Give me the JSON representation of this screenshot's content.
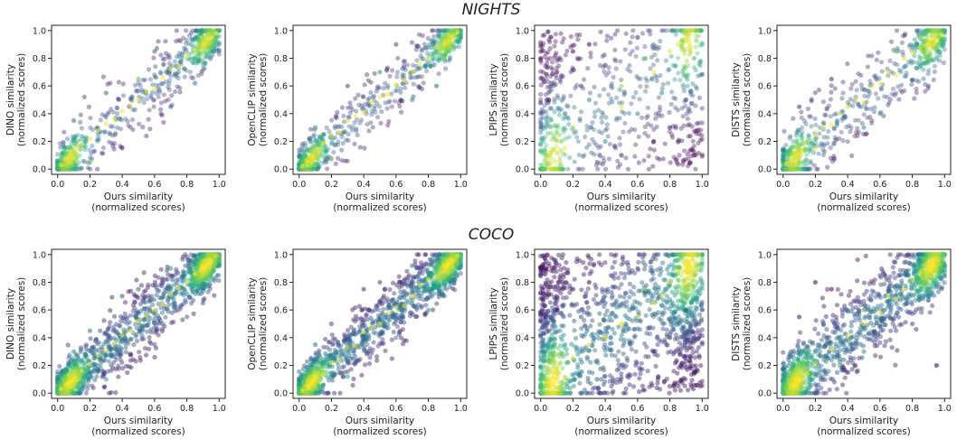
{
  "figure": {
    "rows": [
      {
        "title": "NIGHTS",
        "panels": [
          {
            "xlabel": [
              "Ours similarity",
              "(normalized scores)"
            ],
            "ylabel": [
              "DINO similarity",
              "(normalized scores)"
            ]
          },
          {
            "xlabel": [
              "Ours similarity",
              "(normalized scores)"
            ],
            "ylabel": [
              "OpenCLIP similarity",
              "(normalized scores)"
            ]
          },
          {
            "xlabel": [
              "Ours similarity",
              "(normalized scores)"
            ],
            "ylabel": [
              "LPIPS similarity",
              "(normalized scores)"
            ]
          },
          {
            "xlabel": [
              "Ours similarity",
              "(normalized scores)"
            ],
            "ylabel": [
              "DISTS similarity",
              "(normalized scores)"
            ]
          }
        ]
      },
      {
        "title": "COCO",
        "panels": [
          {
            "xlabel": [
              "Ours similarity",
              "(normalized scores)"
            ],
            "ylabel": [
              "DINO similarity",
              "(normalized scores)"
            ]
          },
          {
            "xlabel": [
              "Ours similarity",
              "(normalized scores)"
            ],
            "ylabel": [
              "OpenCLIP similarity",
              "(normalized scores)"
            ]
          },
          {
            "xlabel": [
              "Ours similarity",
              "(normalized scores)"
            ],
            "ylabel": [
              "LPIPS similarity",
              "(normalized scores)"
            ]
          },
          {
            "xlabel": [
              "Ours similarity",
              "(normalized scores)"
            ],
            "ylabel": [
              "DISTS similarity",
              "(normalized scores)"
            ]
          }
        ]
      }
    ]
  },
  "chart_data": [
    {
      "type": "scatter",
      "row": "NIGHTS",
      "xlabel": "Ours similarity (normalized scores)",
      "ylabel": "DINO similarity (normalized scores)",
      "xlim": [
        0,
        1
      ],
      "ylim": [
        0,
        1
      ],
      "xticks": [
        0.0,
        0.2,
        0.4,
        0.6,
        0.8,
        1.0
      ],
      "yticks": [
        0.0,
        0.2,
        0.4,
        0.6,
        0.8,
        1.0
      ],
      "colormap": "viridis (point density)",
      "grid": false,
      "x": [
        0.02,
        0.05,
        0.08,
        0.12,
        0.15,
        0.2,
        0.25,
        0.3,
        0.35,
        0.4,
        0.45,
        0.5,
        0.55,
        0.6,
        0.65,
        0.7,
        0.75,
        0.8,
        0.85,
        0.9,
        0.95,
        0.98,
        0.1,
        0.3,
        0.5,
        0.7,
        0.9,
        0.2,
        0.6,
        0.85
      ],
      "y": [
        0.03,
        0.07,
        0.1,
        0.15,
        0.18,
        0.22,
        0.28,
        0.33,
        0.36,
        0.42,
        0.46,
        0.5,
        0.56,
        0.58,
        0.66,
        0.72,
        0.74,
        0.82,
        0.86,
        0.9,
        0.95,
        0.98,
        0.35,
        0.55,
        0.65,
        0.45,
        0.75,
        0.05,
        0.85,
        0.62
      ]
    },
    {
      "type": "scatter",
      "row": "NIGHTS",
      "xlabel": "Ours similarity (normalized scores)",
      "ylabel": "OpenCLIP similarity (normalized scores)",
      "xlim": [
        0,
        1
      ],
      "ylim": [
        0,
        1
      ],
      "xticks": [
        0.0,
        0.2,
        0.4,
        0.6,
        0.8,
        1.0
      ],
      "yticks": [
        0.0,
        0.2,
        0.4,
        0.6,
        0.8,
        1.0
      ],
      "colormap": "viridis (point density)",
      "grid": false,
      "x": [
        0.02,
        0.05,
        0.08,
        0.12,
        0.15,
        0.2,
        0.25,
        0.3,
        0.35,
        0.4,
        0.45,
        0.5,
        0.55,
        0.6,
        0.65,
        0.7,
        0.75,
        0.8,
        0.85,
        0.9,
        0.95,
        0.98,
        0.1,
        0.3,
        0.5,
        0.7,
        0.9,
        0.2,
        0.6,
        0.85
      ],
      "y": [
        0.02,
        0.06,
        0.09,
        0.14,
        0.19,
        0.24,
        0.27,
        0.35,
        0.38,
        0.41,
        0.48,
        0.52,
        0.54,
        0.61,
        0.64,
        0.7,
        0.76,
        0.8,
        0.88,
        0.91,
        0.96,
        0.99,
        0.3,
        0.6,
        0.7,
        0.5,
        0.8,
        0.08,
        0.9,
        0.6
      ]
    },
    {
      "type": "scatter",
      "row": "NIGHTS",
      "xlabel": "Ours similarity (normalized scores)",
      "ylabel": "LPIPS similarity (normalized scores)",
      "xlim": [
        0,
        1
      ],
      "ylim": [
        0,
        1
      ],
      "xticks": [
        0.0,
        0.2,
        0.4,
        0.6,
        0.8,
        1.0
      ],
      "yticks": [
        0.0,
        0.2,
        0.4,
        0.6,
        0.8,
        1.0
      ],
      "colormap": "viridis (point density)",
      "grid": false,
      "x": [
        0.05,
        0.1,
        0.15,
        0.2,
        0.3,
        0.4,
        0.5,
        0.6,
        0.7,
        0.8,
        0.85,
        0.9,
        0.95,
        0.1,
        0.3,
        0.5,
        0.7,
        0.9,
        0.2,
        0.4,
        0.6,
        0.8,
        0.05,
        0.95,
        0.5,
        0.25,
        0.75,
        0.35,
        0.65,
        0.15
      ],
      "y": [
        0.1,
        0.12,
        0.15,
        0.3,
        0.5,
        0.2,
        0.6,
        0.4,
        0.7,
        0.85,
        0.9,
        0.92,
        0.8,
        0.7,
        0.9,
        0.1,
        0.2,
        0.5,
        0.85,
        0.75,
        0.95,
        0.3,
        0.5,
        0.1,
        0.45,
        0.6,
        0.55,
        0.05,
        0.8,
        0.4
      ]
    },
    {
      "type": "scatter",
      "row": "NIGHTS",
      "xlabel": "Ours similarity (normalized scores)",
      "ylabel": "DISTS similarity (normalized scores)",
      "xlim": [
        0,
        1
      ],
      "ylim": [
        0,
        1
      ],
      "xticks": [
        0.0,
        0.2,
        0.4,
        0.6,
        0.8,
        1.0
      ],
      "yticks": [
        0.0,
        0.2,
        0.4,
        0.6,
        0.8,
        1.0
      ],
      "colormap": "viridis (point density)",
      "grid": false,
      "x": [
        0.02,
        0.05,
        0.08,
        0.12,
        0.15,
        0.2,
        0.25,
        0.3,
        0.35,
        0.4,
        0.45,
        0.5,
        0.55,
        0.6,
        0.65,
        0.7,
        0.75,
        0.8,
        0.85,
        0.9,
        0.95,
        0.98,
        0.1,
        0.3,
        0.5,
        0.7,
        0.9,
        0.2,
        0.6,
        0.85
      ],
      "y": [
        0.04,
        0.06,
        0.11,
        0.13,
        0.2,
        0.25,
        0.3,
        0.32,
        0.4,
        0.45,
        0.5,
        0.48,
        0.6,
        0.62,
        0.7,
        0.68,
        0.8,
        0.84,
        0.88,
        0.9,
        0.93,
        0.97,
        0.45,
        0.65,
        0.3,
        0.85,
        0.6,
        0.15,
        0.4,
        0.95
      ]
    },
    {
      "type": "scatter",
      "row": "COCO",
      "xlabel": "Ours similarity (normalized scores)",
      "ylabel": "DINO similarity (normalized scores)",
      "xlim": [
        0,
        1
      ],
      "ylim": [
        0,
        1
      ],
      "xticks": [
        0.0,
        0.2,
        0.4,
        0.6,
        0.8,
        1.0
      ],
      "yticks": [
        0.0,
        0.2,
        0.4,
        0.6,
        0.8,
        1.0
      ],
      "colormap": "viridis (point density)",
      "grid": false,
      "x": [
        0.02,
        0.06,
        0.1,
        0.15,
        0.2,
        0.25,
        0.3,
        0.35,
        0.4,
        0.45,
        0.5,
        0.55,
        0.6,
        0.65,
        0.7,
        0.75,
        0.8,
        0.85,
        0.9,
        0.95,
        0.98,
        0.2,
        0.4,
        0.6,
        0.8,
        0.1,
        0.5,
        0.9,
        0.3,
        0.7
      ],
      "y": [
        0.03,
        0.07,
        0.1,
        0.16,
        0.21,
        0.27,
        0.31,
        0.36,
        0.42,
        0.45,
        0.52,
        0.56,
        0.6,
        0.64,
        0.71,
        0.76,
        0.8,
        0.86,
        0.9,
        0.95,
        0.99,
        0.45,
        0.7,
        0.35,
        0.55,
        0.3,
        0.75,
        0.65,
        0.1,
        0.9
      ]
    },
    {
      "type": "scatter",
      "row": "COCO",
      "xlabel": "Ours similarity (normalized scores)",
      "ylabel": "OpenCLIP similarity (normalized scores)",
      "xlim": [
        0,
        1
      ],
      "ylim": [
        0,
        1
      ],
      "xticks": [
        0.0,
        0.2,
        0.4,
        0.6,
        0.8,
        1.0
      ],
      "yticks": [
        0.0,
        0.2,
        0.4,
        0.6,
        0.8,
        1.0
      ],
      "colormap": "viridis (point density)",
      "grid": false,
      "x": [
        0.02,
        0.06,
        0.1,
        0.15,
        0.2,
        0.25,
        0.3,
        0.35,
        0.4,
        0.45,
        0.5,
        0.55,
        0.6,
        0.65,
        0.7,
        0.75,
        0.8,
        0.85,
        0.9,
        0.95,
        0.98,
        0.2,
        0.4,
        0.6,
        0.8,
        0.1,
        0.5,
        0.9,
        0.3,
        0.7
      ],
      "y": [
        0.02,
        0.05,
        0.12,
        0.14,
        0.22,
        0.24,
        0.33,
        0.34,
        0.44,
        0.47,
        0.5,
        0.58,
        0.62,
        0.63,
        0.7,
        0.78,
        0.82,
        0.84,
        0.92,
        0.96,
        0.99,
        0.5,
        0.75,
        0.4,
        0.6,
        0.35,
        0.8,
        0.7,
        0.12,
        0.92
      ]
    },
    {
      "type": "scatter",
      "row": "COCO",
      "xlabel": "Ours similarity (normalized scores)",
      "ylabel": "LPIPS similarity (normalized scores)",
      "xlim": [
        0,
        1
      ],
      "ylim": [
        0,
        1
      ],
      "xticks": [
        0.0,
        0.2,
        0.4,
        0.6,
        0.8,
        1.0
      ],
      "yticks": [
        0.0,
        0.2,
        0.4,
        0.6,
        0.8,
        1.0
      ],
      "colormap": "viridis (point density)",
      "grid": false,
      "x": [
        0.05,
        0.1,
        0.15,
        0.2,
        0.3,
        0.4,
        0.5,
        0.6,
        0.7,
        0.8,
        0.85,
        0.9,
        0.95,
        0.1,
        0.3,
        0.5,
        0.7,
        0.9,
        0.2,
        0.4,
        0.6,
        0.8,
        0.05,
        0.95,
        0.5,
        0.25,
        0.75,
        0.35,
        0.65,
        0.15
      ],
      "y": [
        0.08,
        0.1,
        0.12,
        0.25,
        0.35,
        0.4,
        0.5,
        0.55,
        0.65,
        0.8,
        0.88,
        0.9,
        0.85,
        0.6,
        0.8,
        0.2,
        0.3,
        0.6,
        0.75,
        0.65,
        0.9,
        0.4,
        0.45,
        0.15,
        0.5,
        0.55,
        0.7,
        0.1,
        0.75,
        0.35
      ]
    },
    {
      "type": "scatter",
      "row": "COCO",
      "xlabel": "Ours similarity (normalized scores)",
      "ylabel": "DISTS similarity (normalized scores)",
      "xlim": [
        0,
        1
      ],
      "ylim": [
        0,
        1
      ],
      "xticks": [
        0.0,
        0.2,
        0.4,
        0.6,
        0.8,
        1.0
      ],
      "yticks": [
        0.0,
        0.2,
        0.4,
        0.6,
        0.8,
        1.0
      ],
      "colormap": "viridis (point density)",
      "grid": false,
      "x": [
        0.05,
        0.1,
        0.15,
        0.2,
        0.3,
        0.4,
        0.5,
        0.6,
        0.7,
        0.8,
        0.85,
        0.9,
        0.95,
        0.1,
        0.3,
        0.5,
        0.7,
        0.9,
        0.2,
        0.4,
        0.6,
        0.8,
        0.05,
        0.95,
        0.5,
        0.25,
        0.75,
        0.35,
        0.65,
        0.15
      ],
      "y": [
        0.06,
        0.09,
        0.14,
        0.22,
        0.32,
        0.42,
        0.5,
        0.58,
        0.68,
        0.82,
        0.87,
        0.91,
        0.88,
        0.55,
        0.75,
        0.3,
        0.45,
        0.7,
        0.8,
        0.6,
        0.85,
        0.5,
        0.3,
        0.2,
        0.6,
        0.5,
        0.75,
        0.2,
        0.7,
        0.3
      ]
    }
  ]
}
